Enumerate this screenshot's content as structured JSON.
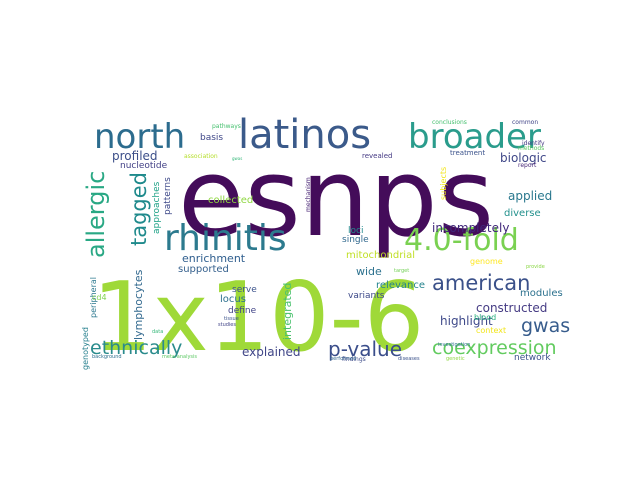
{
  "words": [
    {
      "text": "esnps",
      "color": "#440c5a",
      "weight": 1.0
    },
    {
      "text": "1x10-6",
      "color": "#9fd938",
      "weight": 0.95
    },
    {
      "text": "latinos",
      "color": "#3b5a8a",
      "weight": 0.55
    },
    {
      "text": "broader",
      "color": "#2a9c8c",
      "weight": 0.5
    },
    {
      "text": "north",
      "color": "#2c6c8e",
      "weight": 0.45
    },
    {
      "text": "rhinitis",
      "color": "#2c7a8e",
      "weight": 0.5
    },
    {
      "text": "4.0-fold",
      "color": "#7ad151",
      "weight": 0.45
    },
    {
      "text": "allergic",
      "color": "#29a884",
      "weight": 0.3
    },
    {
      "text": "tagged",
      "color": "#1f8a8c",
      "weight": 0.28
    },
    {
      "text": "american",
      "color": "#3a5089",
      "weight": 0.3
    },
    {
      "text": "p-value",
      "color": "#3a4d8a",
      "weight": 0.3
    },
    {
      "text": "coexpression",
      "color": "#62cb5f",
      "weight": 0.3
    },
    {
      "text": "ethnically",
      "color": "#2a8b8c",
      "weight": 0.25
    },
    {
      "text": "gwas",
      "color": "#375c8c",
      "weight": 0.25
    },
    {
      "text": "biologic",
      "color": "#3f4788",
      "weight": 0.15
    },
    {
      "text": "incompletely",
      "color": "#40277a",
      "weight": 0.15
    },
    {
      "text": "applied",
      "color": "#2a788e",
      "weight": 0.15
    },
    {
      "text": "profiled",
      "color": "#3c4e89",
      "weight": 0.15
    },
    {
      "text": "lymphocytes",
      "color": "#31688e",
      "weight": 0.14
    },
    {
      "text": "integrated",
      "color": "#4ac16d",
      "weight": 0.14
    },
    {
      "text": "explained",
      "color": "#404688",
      "weight": 0.14
    },
    {
      "text": "constructed",
      "color": "#443a83",
      "weight": 0.14
    },
    {
      "text": "highlight",
      "color": "#3f4a8a",
      "weight": 0.14
    },
    {
      "text": "enrichment",
      "color": "#2f5e8e",
      "weight": 0.13
    },
    {
      "text": "wide",
      "color": "#2c718e",
      "weight": 0.13
    },
    {
      "text": "diverse",
      "color": "#22908c",
      "weight": 0.1
    },
    {
      "text": "modules",
      "color": "#2c718e",
      "weight": 0.1
    },
    {
      "text": "mitochondrial",
      "color": "#c0df25",
      "weight": 0.1
    },
    {
      "text": "supported",
      "color": "#35608d",
      "weight": 0.1
    },
    {
      "text": "collected",
      "color": "#90d743",
      "weight": 0.1
    },
    {
      "text": "relevance",
      "color": "#25848e",
      "weight": 0.1
    },
    {
      "text": "locus",
      "color": "#2c708e",
      "weight": 0.1
    },
    {
      "text": "variants",
      "color": "#3e4a89",
      "weight": 0.1
    },
    {
      "text": "nucleotide",
      "color": "#424086",
      "weight": 0.1
    },
    {
      "text": "basis",
      "color": "#3f4788",
      "weight": 0.1
    },
    {
      "text": "loci",
      "color": "#238a8d",
      "weight": 0.1
    },
    {
      "text": "single",
      "color": "#31688e",
      "weight": 0.1
    },
    {
      "text": "serve",
      "color": "#3b528b",
      "weight": 0.09
    },
    {
      "text": "define",
      "color": "#414487",
      "weight": 0.09
    },
    {
      "text": "blood",
      "color": "#2ab07f",
      "weight": 0.08
    },
    {
      "text": "network",
      "color": "#3b528b",
      "weight": 0.08
    },
    {
      "text": "patterns",
      "color": "#3e4989",
      "weight": 0.08
    },
    {
      "text": "approaches",
      "color": "#1fa287",
      "weight": 0.08
    },
    {
      "text": "peripheral",
      "color": "#2a778e",
      "weight": 0.08
    },
    {
      "text": "genotyped",
      "color": "#27808e",
      "weight": 0.08
    },
    {
      "text": "cd4",
      "color": "#7fd34e",
      "weight": 0.08
    },
    {
      "text": "context",
      "color": "#f1e51d",
      "weight": 0.07
    },
    {
      "text": "subjects",
      "color": "#f3e51c",
      "weight": 0.07
    },
    {
      "text": "genome",
      "color": "#fde725",
      "weight": 0.07
    },
    {
      "text": "revealed",
      "color": "#443983",
      "weight": 0.06
    },
    {
      "text": "treatment",
      "color": "#3b528b",
      "weight": 0.05
    },
    {
      "text": "report",
      "color": "#482878",
      "weight": 0.05
    },
    {
      "text": "methods",
      "color": "#5ec962",
      "weight": 0.05
    },
    {
      "text": "identify",
      "color": "#443983",
      "weight": 0.05
    },
    {
      "text": "common",
      "color": "#414487",
      "weight": 0.05
    },
    {
      "text": "conclusions",
      "color": "#46c06f",
      "weight": 0.05
    },
    {
      "text": "pathways",
      "color": "#46c06f",
      "weight": 0.05
    },
    {
      "text": "association",
      "color": "#b5de2b",
      "weight": 0.04
    },
    {
      "text": "gwas",
      "color": "#35b779",
      "weight": 0.03
    },
    {
      "text": "mechanism",
      "color": "#482475",
      "weight": 0.04
    },
    {
      "text": "target",
      "color": "#73d056",
      "weight": 0.04
    },
    {
      "text": "provide",
      "color": "#8bd646",
      "weight": 0.04
    },
    {
      "text": "investigation",
      "color": "#2c718e",
      "weight": 0.04
    },
    {
      "text": "tissue",
      "color": "#3b528b",
      "weight": 0.04
    },
    {
      "text": "studies",
      "color": "#414487",
      "weight": 0.04
    },
    {
      "text": "findings",
      "color": "#3e4c8a",
      "weight": 0.04
    },
    {
      "text": "data",
      "color": "#35b779",
      "weight": 0.04
    },
    {
      "text": "background",
      "color": "#2e6f8e",
      "weight": 0.04
    },
    {
      "text": "meta-analysis",
      "color": "#5cc863",
      "weight": 0.04
    },
    {
      "text": "performed",
      "color": "#32648e",
      "weight": 0.04
    },
    {
      "text": "diseases",
      "color": "#3b528b",
      "weight": 0.04
    },
    {
      "text": "genetic",
      "color": "#8fd744",
      "weight": 0.04
    }
  ]
}
